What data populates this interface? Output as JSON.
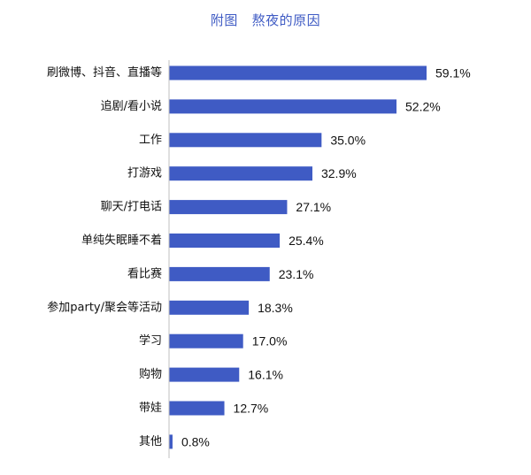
{
  "chart_data": {
    "type": "bar",
    "orientation": "horizontal",
    "title": "附图   熬夜的原因",
    "categories": [
      "刷微博、抖音、直播等",
      "追剧/看小说",
      "工作",
      "打游戏",
      "聊天/打电话",
      "单纯失眠睡不着",
      "看比赛",
      "参加party/聚会等活动",
      "学习",
      "购物",
      "带娃",
      "其他"
    ],
    "values": [
      59.1,
      52.2,
      35.0,
      32.9,
      27.1,
      25.4,
      23.1,
      18.3,
      17.0,
      16.1,
      12.7,
      0.8
    ],
    "value_labels": [
      "59.1%",
      "52.2%",
      "35.0%",
      "32.9%",
      "27.1%",
      "25.4%",
      "23.1%",
      "18.3%",
      "17.0%",
      "16.1%",
      "12.7%",
      "0.8%"
    ],
    "unit": "%",
    "xlim": [
      0,
      70
    ],
    "grid": false,
    "legend": "none",
    "colors": {
      "bar": "#3f5bc4",
      "axis": "#bfbfbf",
      "title": "#3f5bc4"
    }
  }
}
